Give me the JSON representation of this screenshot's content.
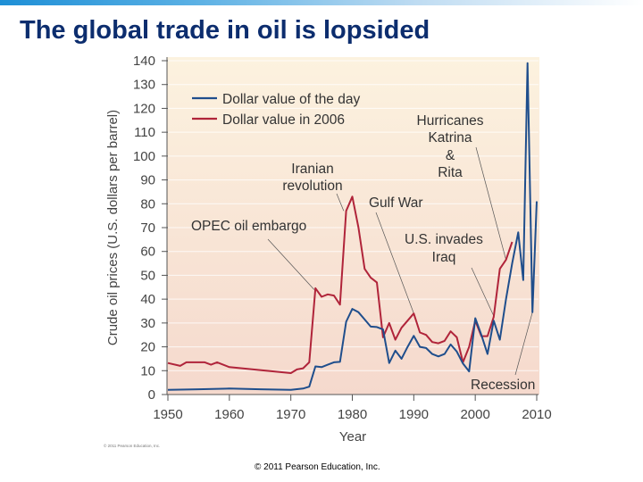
{
  "slide": {
    "title": "The global trade in oil is lopsided",
    "footer": "© 2011 Pearson Education, Inc.",
    "figure_credit": "© 2011 Pearson Education, Inc."
  },
  "chart_data": {
    "type": "line",
    "title": "",
    "xlabel": "Year",
    "ylabel": "Crude oil prices (U.S. dollars per barrel)",
    "xlim": [
      1950,
      2010
    ],
    "ylim": [
      0,
      140
    ],
    "xticks": [
      1950,
      1960,
      1970,
      1980,
      1990,
      2000,
      2010
    ],
    "yticks": [
      0,
      10,
      20,
      30,
      40,
      50,
      60,
      70,
      80,
      90,
      100,
      110,
      120,
      130,
      140
    ],
    "grid": true,
    "legend_position": "top-left",
    "series": [
      {
        "name": "Dollar value of the day",
        "color": "#1f4e8c",
        "x": [
          1950,
          1955,
          1960,
          1965,
          1970,
          1972,
          1973,
          1974,
          1975,
          1976,
          1977,
          1978,
          1979,
          1980,
          1981,
          1982,
          1983,
          1984,
          1985,
          1986,
          1987,
          1988,
          1989,
          1990,
          1991,
          1992,
          1993,
          1994,
          1995,
          1996,
          1997,
          1998,
          1999,
          2000,
          2001,
          2002,
          2003,
          2004,
          2005,
          2006,
          2007,
          2007.8,
          2008.5,
          2009.3,
          2010
        ],
        "values": [
          2.0,
          2.2,
          2.5,
          2.2,
          2.0,
          2.5,
          3.3,
          11.8,
          11.5,
          12.5,
          13.5,
          13.7,
          30.5,
          35.9,
          34.5,
          31.5,
          28.5,
          28.3,
          27.3,
          13.2,
          18.4,
          15,
          20,
          24.6,
          20,
          19.5,
          17,
          16,
          17,
          21,
          18,
          13,
          9.7,
          32,
          25,
          17,
          31,
          23,
          40,
          55,
          68,
          48,
          139,
          34.5,
          81
        ]
      },
      {
        "name": "Dollar value in 2006",
        "color": "#b0243a",
        "x": [
          1950,
          1952,
          1953,
          1956,
          1957,
          1958,
          1960,
          1970,
          1971,
          1972,
          1973,
          1974,
          1975,
          1976,
          1977,
          1978,
          1979,
          1980,
          1981,
          1982,
          1983,
          1984,
          1985,
          1986,
          1987,
          1988,
          1990,
          1991,
          1992,
          1993,
          1994,
          1995,
          1996,
          1997,
          1998,
          1999,
          2000,
          2001,
          2002,
          2003,
          2004,
          2005,
          2006
        ],
        "values": [
          13.2,
          12,
          13.5,
          13.5,
          12.5,
          13.5,
          11.5,
          9,
          10.5,
          11,
          13.5,
          44.6,
          41,
          42,
          41.5,
          37.7,
          77,
          83,
          70,
          52.7,
          49,
          47,
          24,
          30,
          23,
          28,
          34,
          26,
          25,
          22,
          21.5,
          22.5,
          26.5,
          24,
          13.5,
          20,
          31,
          24.5,
          24.5,
          32.5,
          52.7,
          56.5,
          64
        ]
      }
    ],
    "annotations": [
      {
        "lines": [
          "OPEC oil embargo"
        ],
        "target": [
          1973.8,
          44
        ]
      },
      {
        "lines": [
          "Iranian",
          "revolution"
        ],
        "target": [
          1978.6,
          77
        ]
      },
      {
        "lines": [
          "Gulf War"
        ],
        "target": [
          1990,
          34
        ]
      },
      {
        "lines": [
          "Hurricanes",
          "Katrina",
          "&",
          "Rita"
        ],
        "target": [
          2005,
          56.5
        ]
      },
      {
        "lines": [
          "U.S. invades",
          "Iraq"
        ],
        "target": [
          2003,
          33
        ]
      },
      {
        "lines": [
          "Recession"
        ],
        "target": [
          2009.3,
          34.5
        ]
      }
    ]
  }
}
